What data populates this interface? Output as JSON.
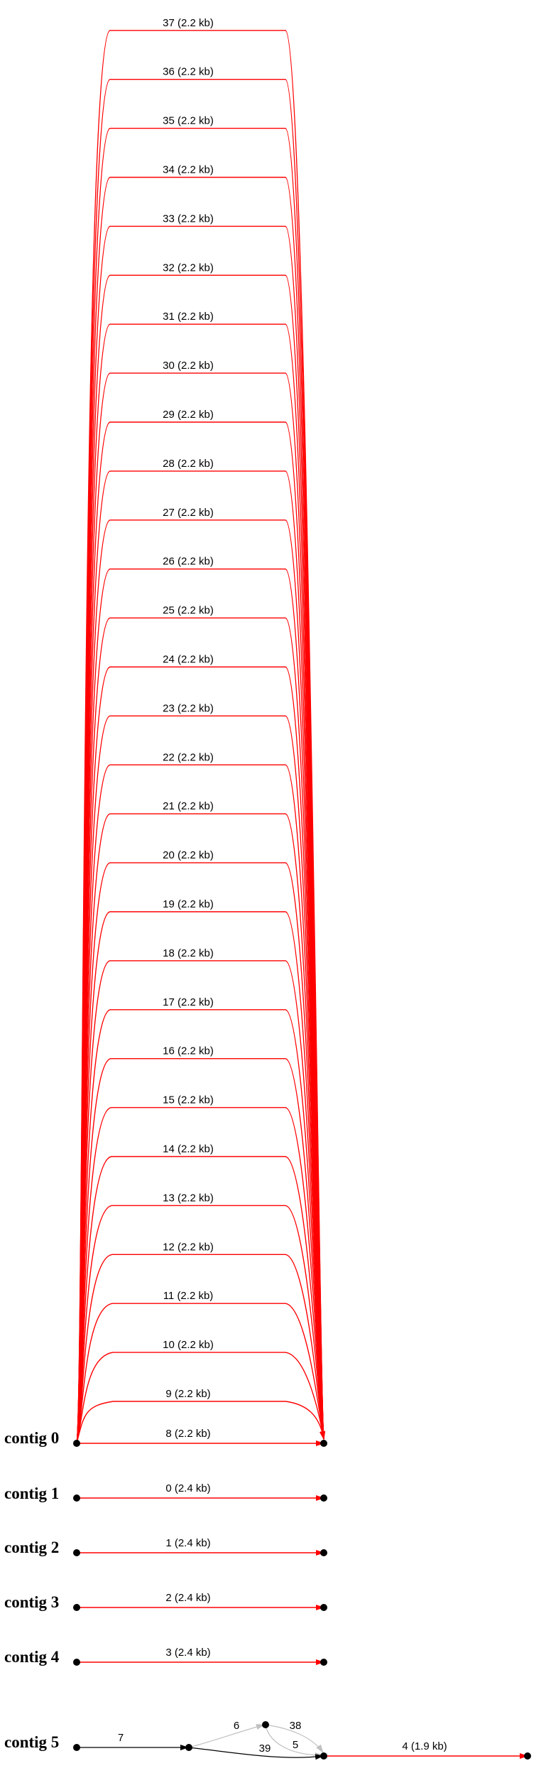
{
  "colors": {
    "contig_edge": "#ff0000",
    "plain_edge": "#000000",
    "faded_edge": "#c0c0c0",
    "node": "#000000",
    "background": "#ffffff"
  },
  "contigs": [
    {
      "label": "contig 0",
      "edges": [
        {
          "label": "8 (2.2 kb)"
        },
        {
          "label": "9 (2.2 kb)"
        },
        {
          "label": "10 (2.2 kb)"
        },
        {
          "label": "11 (2.2 kb)"
        },
        {
          "label": "12 (2.2 kb)"
        },
        {
          "label": "13 (2.2 kb)"
        },
        {
          "label": "14 (2.2 kb)"
        },
        {
          "label": "15 (2.2 kb)"
        },
        {
          "label": "16 (2.2 kb)"
        },
        {
          "label": "17 (2.2 kb)"
        },
        {
          "label": "18 (2.2 kb)"
        },
        {
          "label": "19 (2.2 kb)"
        },
        {
          "label": "20 (2.2 kb)"
        },
        {
          "label": "21 (2.2 kb)"
        },
        {
          "label": "22 (2.2 kb)"
        },
        {
          "label": "23 (2.2 kb)"
        },
        {
          "label": "24 (2.2 kb)"
        },
        {
          "label": "25 (2.2 kb)"
        },
        {
          "label": "26 (2.2 kb)"
        },
        {
          "label": "27 (2.2 kb)"
        },
        {
          "label": "28 (2.2 kb)"
        },
        {
          "label": "29 (2.2 kb)"
        },
        {
          "label": "30 (2.2 kb)"
        },
        {
          "label": "31 (2.2 kb)"
        },
        {
          "label": "32 (2.2 kb)"
        },
        {
          "label": "33 (2.2 kb)"
        },
        {
          "label": "34 (2.2 kb)"
        },
        {
          "label": "35 (2.2 kb)"
        },
        {
          "label": "36 (2.2 kb)"
        },
        {
          "label": "37 (2.2 kb)"
        }
      ]
    },
    {
      "label": "contig 1",
      "edges": [
        {
          "label": "0 (2.4 kb)"
        }
      ]
    },
    {
      "label": "contig 2",
      "edges": [
        {
          "label": "1 (2.4 kb)"
        }
      ]
    },
    {
      "label": "contig 3",
      "edges": [
        {
          "label": "2 (2.4 kb)"
        }
      ]
    },
    {
      "label": "contig 4",
      "edges": [
        {
          "label": "3 (2.4 kb)"
        }
      ]
    },
    {
      "label": "contig 5",
      "edges": [
        {
          "label": "7",
          "style": "plain"
        },
        {
          "label": "6",
          "style": "faded"
        },
        {
          "label": "38",
          "style": "faded"
        },
        {
          "label": "5",
          "style": "faded"
        },
        {
          "label": "39",
          "style": "plain"
        },
        {
          "label": "4 (1.9 kb)",
          "style": "contig"
        }
      ]
    }
  ]
}
